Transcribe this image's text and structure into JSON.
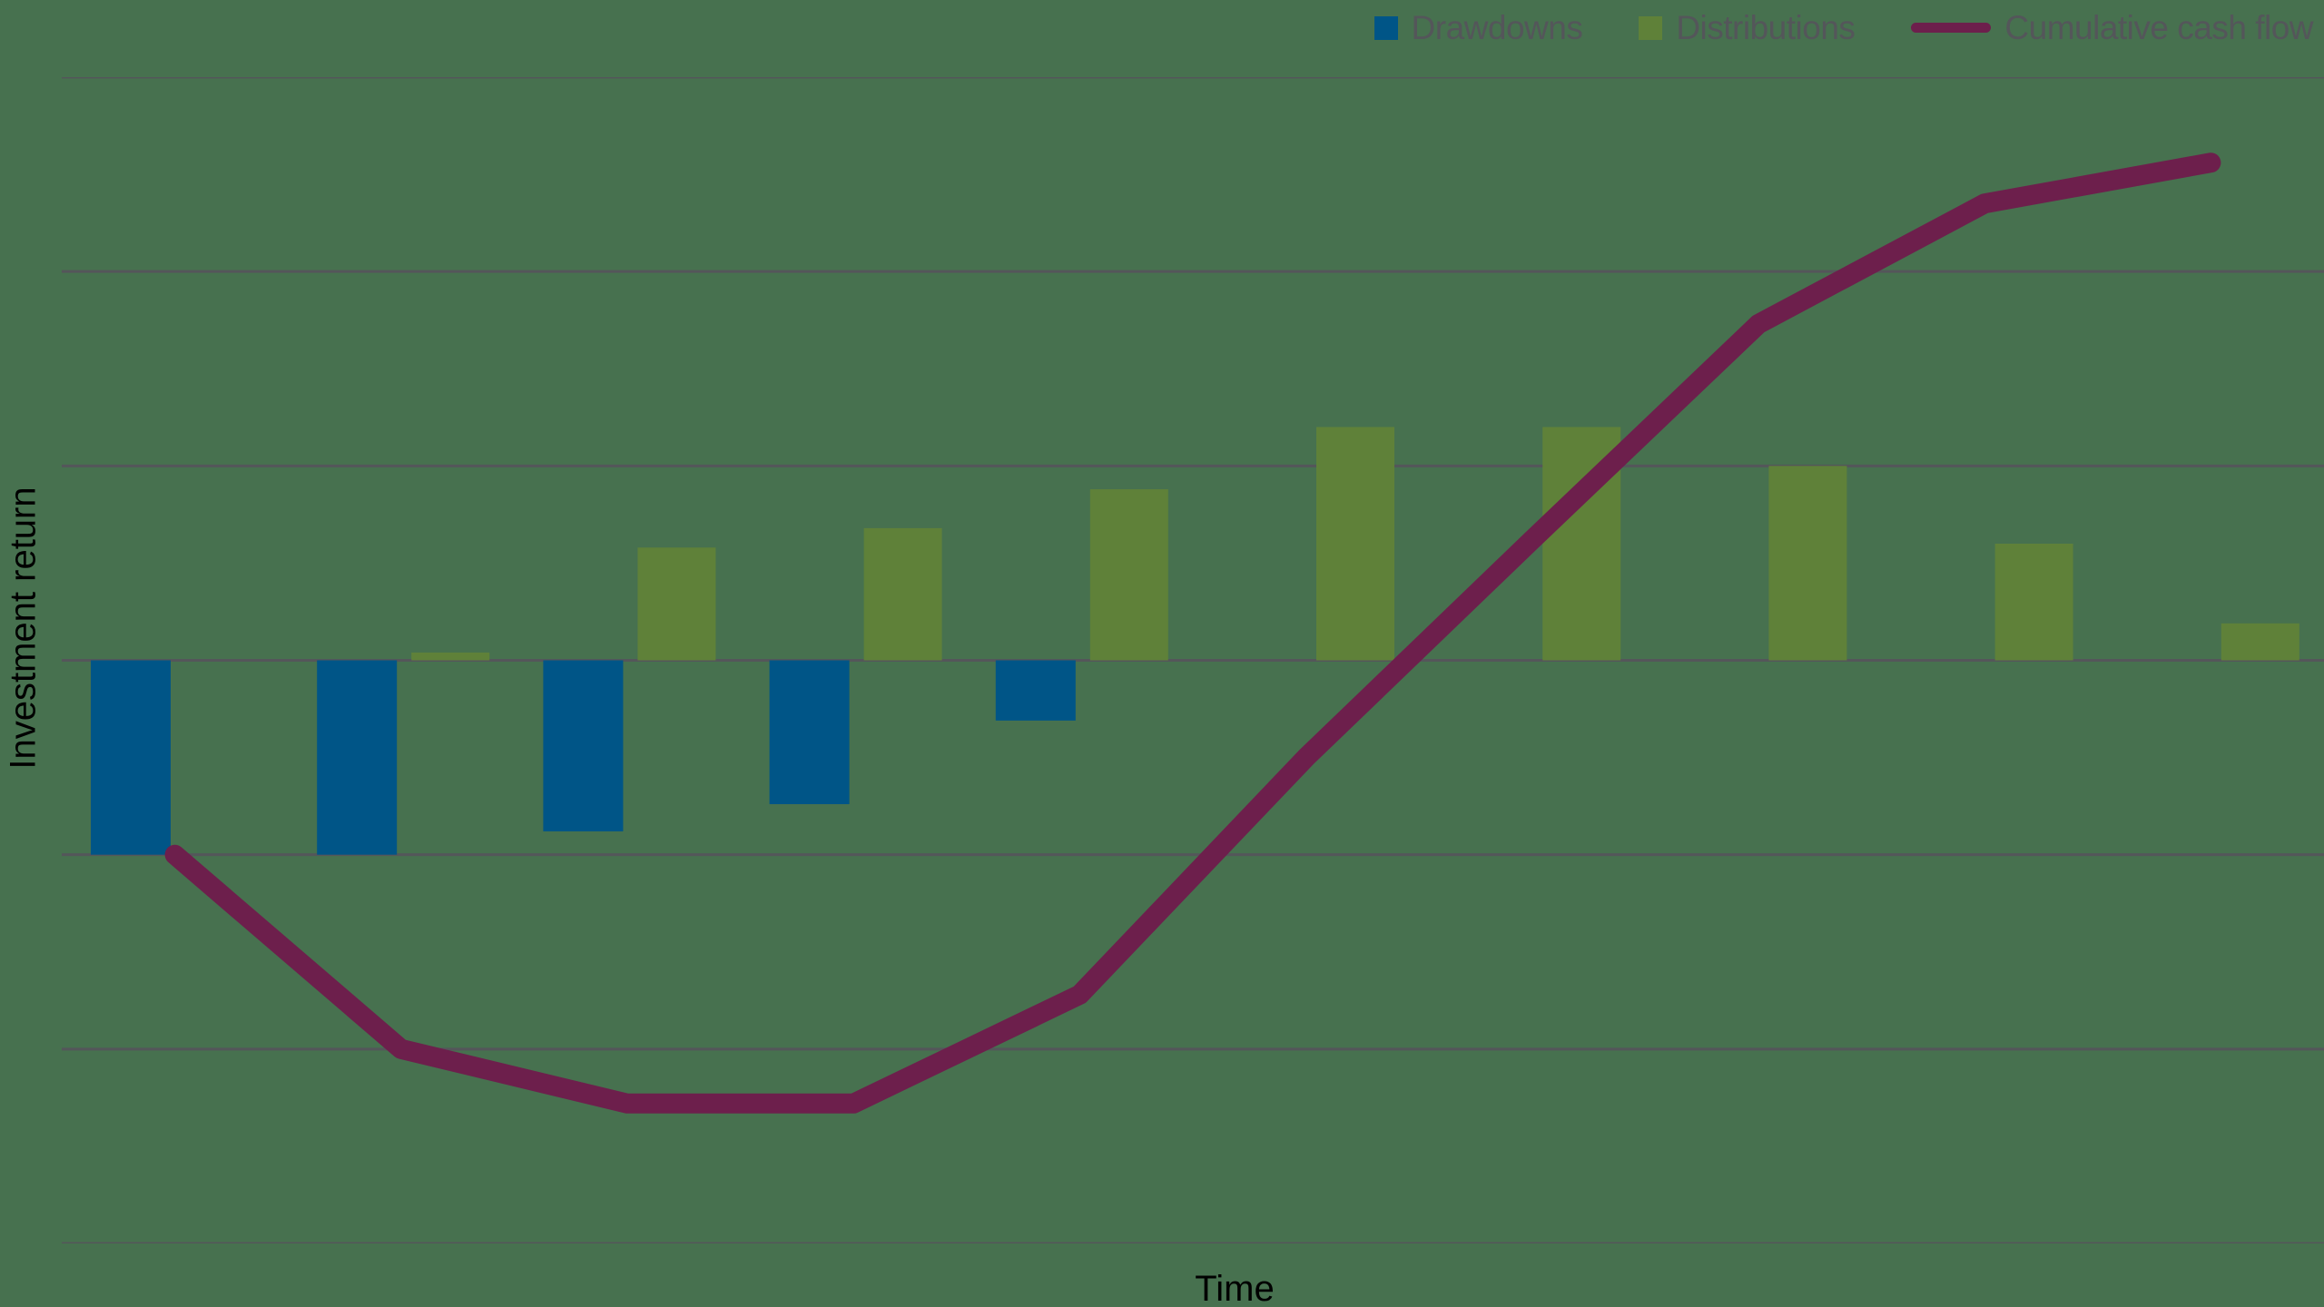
{
  "colors": {
    "background": "#47714F",
    "drawdowns": "#005587",
    "distributions": "#5F8139",
    "cumulative_line": "#6D1F4C",
    "gridline": "#54565A",
    "legend_text": "#54565A",
    "axis_label_text": "#000000"
  },
  "legend": {
    "position": "top-right",
    "items": [
      {
        "label": "Drawdowns",
        "swatch": "square",
        "color": "#005587"
      },
      {
        "label": "Distributions",
        "swatch": "square",
        "color": "#5F8139"
      },
      {
        "label": "Cumulative cash flow",
        "swatch": "line",
        "color": "#6D1F4C"
      }
    ]
  },
  "chart_data": {
    "type": "bar",
    "title": "",
    "xlabel": "Time",
    "ylabel": "Investment return",
    "x_tick_labels": [],
    "y_tick_labels": [],
    "ylim": [
      -3,
      3
    ],
    "gridlines_y": [
      3,
      2,
      1,
      0,
      -1,
      -2,
      -3
    ],
    "grid": "horizontal-only, no axis tick labels (values in gridline units)",
    "categories": [
      "1",
      "2",
      "3",
      "4",
      "5",
      "6",
      "7",
      "8",
      "9",
      "10"
    ],
    "series": [
      {
        "name": "Drawdowns",
        "type": "bar",
        "color": "#005587",
        "values": [
          -1.0,
          -1.0,
          -0.88,
          -0.74,
          -0.31,
          0,
          0,
          0,
          0,
          0
        ]
      },
      {
        "name": "Distributions",
        "type": "bar",
        "color": "#5F8139",
        "values": [
          0,
          0.04,
          0.58,
          0.68,
          0.88,
          1.2,
          1.2,
          1.0,
          0.6,
          0.19
        ]
      },
      {
        "name": "Cumulative cash flow",
        "type": "line",
        "color": "#6D1F4C",
        "values": [
          -1.0,
          -2.0,
          -2.28,
          -2.28,
          -1.72,
          -0.5,
          0.62,
          1.73,
          2.35,
          2.56
        ]
      }
    ]
  }
}
